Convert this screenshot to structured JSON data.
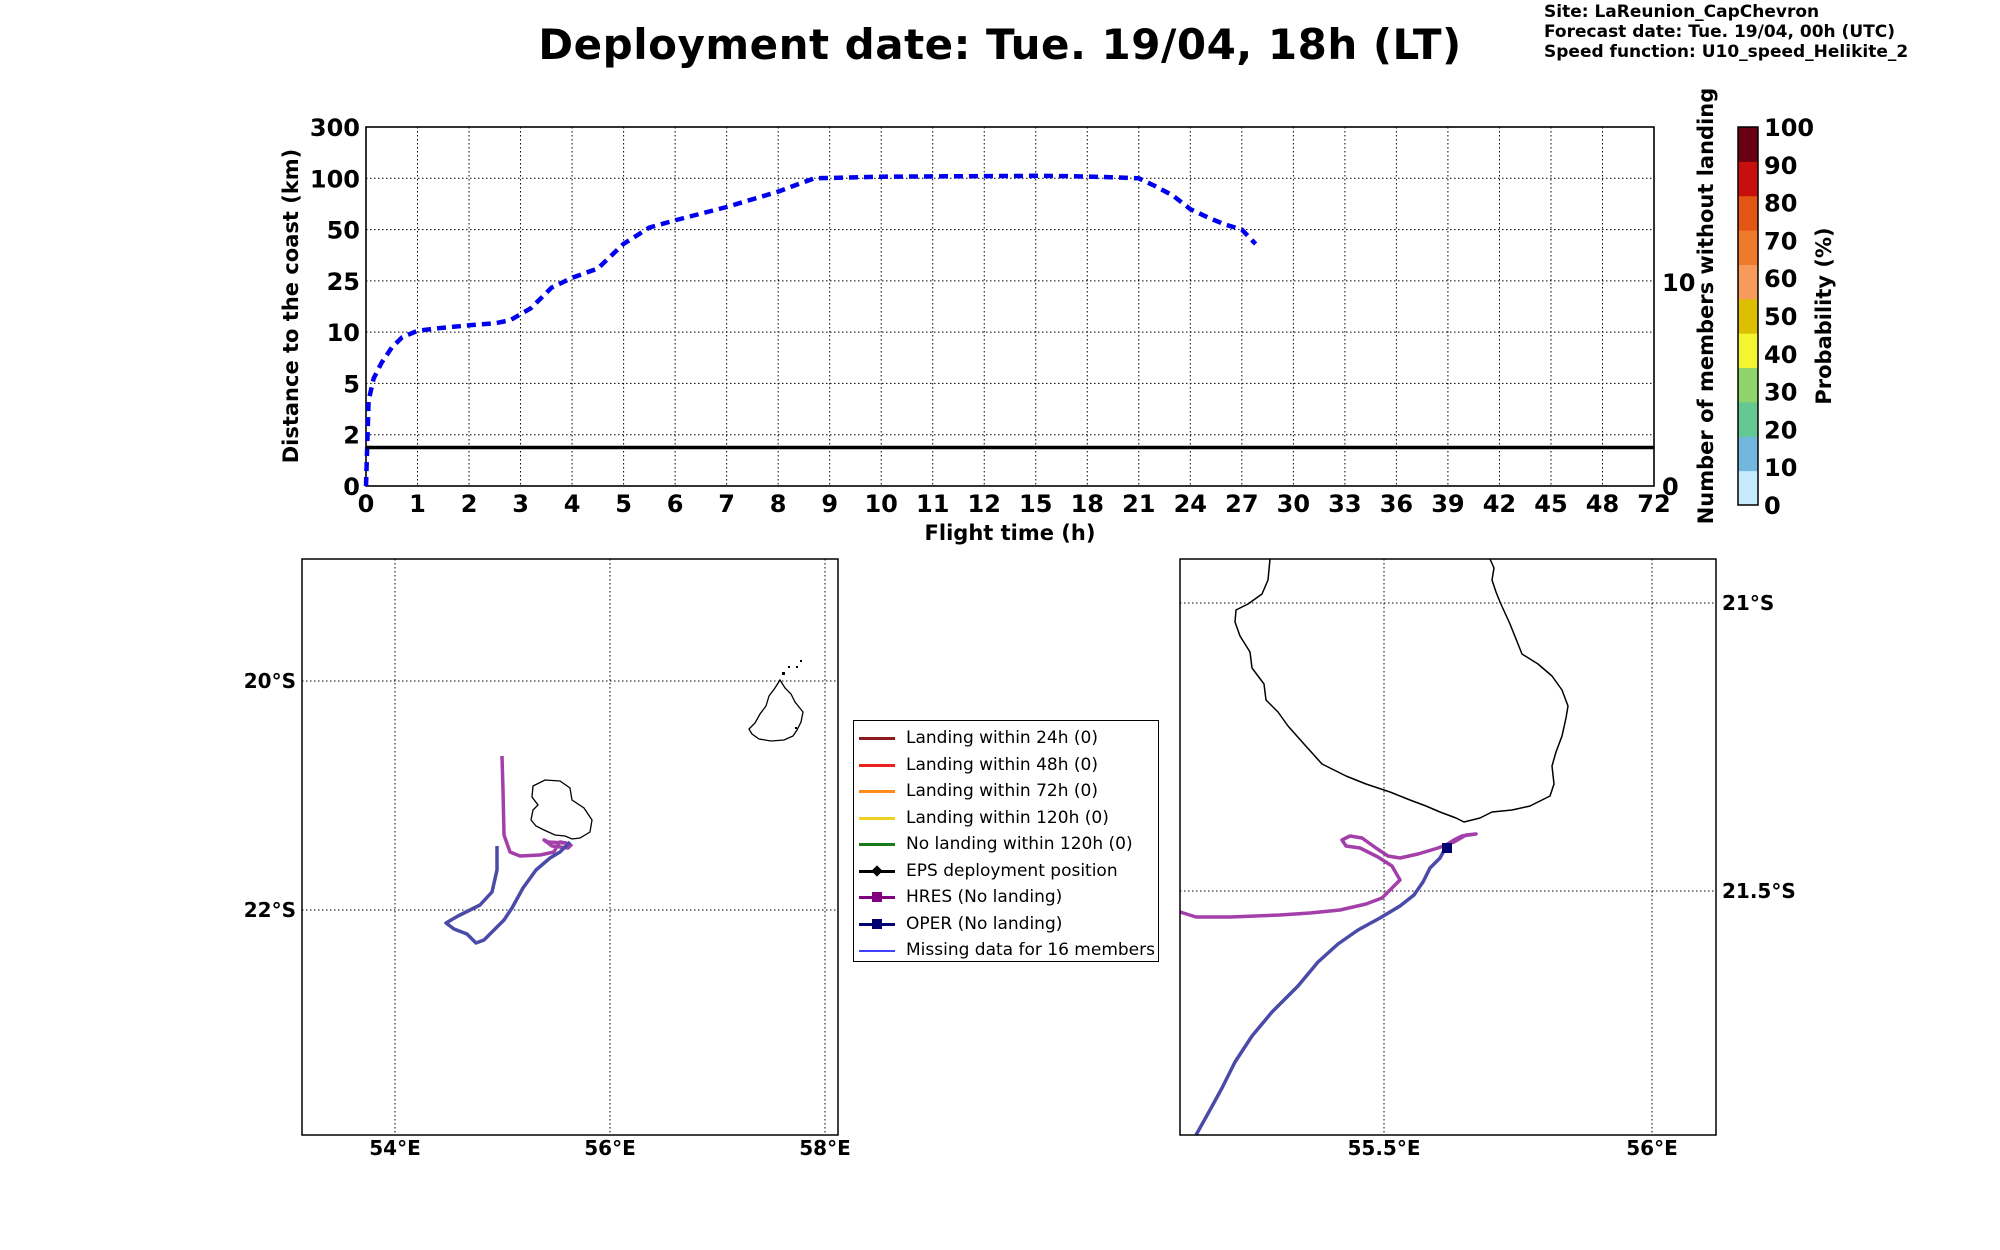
{
  "title": "Deployment date: Tue. 19/04, 18h (LT)",
  "info": {
    "site": "Site: LaReunion_CapChevron",
    "forecast": "Forecast date: Tue. 19/04, 00h (UTC)",
    "speed": "Speed function: U10_speed_Helikite_2"
  },
  "chart_data": [
    {
      "type": "line",
      "xlabel": "Flight time (h)",
      "ylabel": "Distance to the coast (km)",
      "y2label": "Number of members without landing",
      "x_ticks": [
        "0",
        "1",
        "2",
        "3",
        "4",
        "5",
        "6",
        "7",
        "8",
        "9",
        "10",
        "11",
        "12",
        "15",
        "18",
        "21",
        "24",
        "27",
        "30",
        "33",
        "36",
        "39",
        "42",
        "45",
        "48",
        "72"
      ],
      "y_ticks": [
        "0",
        "2",
        "5",
        "10",
        "25",
        "50",
        "100",
        "300"
      ],
      "y2_ticks": [
        "0",
        "10"
      ],
      "grid": true,
      "series": [
        {
          "style": "dashed",
          "color": "#0000ee",
          "x": [
            0,
            0.05,
            0.15,
            0.3,
            0.5,
            0.7,
            1,
            1.5,
            2,
            2.5,
            2.8,
            3.2,
            3.6,
            4,
            4.5,
            5,
            5.5,
            6,
            7,
            8,
            8.7,
            10,
            12,
            14,
            15,
            17,
            19,
            21,
            22,
            23,
            24,
            25,
            26,
            27,
            27.8
          ],
          "y": [
            0,
            4,
            5.5,
            7,
            8.5,
            9.5,
            10.4,
            11.3,
            12,
            12.6,
            13.5,
            17,
            23,
            26.5,
            31,
            43,
            52,
            59,
            72,
            87,
            100,
            106,
            108.5,
            109,
            109.5,
            108,
            105,
            100,
            92,
            83,
            70,
            62,
            55,
            50,
            43
          ]
        },
        {
          "style": "solid",
          "color": "#000000",
          "x": [
            0,
            72
          ],
          "y": [
            1.5,
            1.5
          ]
        }
      ]
    },
    {
      "type": "colorbar",
      "label": "Probability (%)",
      "ticks": [
        "0",
        "10",
        "20",
        "30",
        "40",
        "50",
        "60",
        "70",
        "80",
        "90",
        "100"
      ],
      "colors": [
        "#c8eafd",
        "#72b7dd",
        "#63c892",
        "#8fd46a",
        "#f4f430",
        "#dcc000",
        "#f89a5a",
        "#f07a2c",
        "#e35614",
        "#c90e0e",
        "#6a0014"
      ]
    },
    {
      "type": "map",
      "name": "overview",
      "x_ticks": [
        "54°E",
        "56°E",
        "58°E"
      ],
      "y_ticks": [
        "20°S",
        "22°S"
      ],
      "lon_range": [
        53.15,
        58.15
      ],
      "lat_range": [
        19.0,
        24.0
      ]
    },
    {
      "type": "map",
      "name": "zoom",
      "x_ticks": [
        "55.5°E",
        "56°E"
      ],
      "y_ticks": [
        "21°S",
        "21.5°S"
      ],
      "lon_range": [
        55.1,
        56.12
      ],
      "lat_range": [
        20.92,
        21.92
      ]
    }
  ],
  "legend": [
    {
      "label": "Landing within 24h (0)",
      "color": "#8b1a1a",
      "kind": "line"
    },
    {
      "label": "Landing within 48h (0)",
      "color": "#ee2020",
      "kind": "line"
    },
    {
      "label": "Landing within 72h (0)",
      "color": "#ff8c1a",
      "kind": "line"
    },
    {
      "label": "Landing within 120h (0)",
      "color": "#f0d020",
      "kind": "line"
    },
    {
      "label": "No landing within 120h (0)",
      "color": "#1a7a1a",
      "kind": "line"
    },
    {
      "label": "EPS deployment position",
      "color": "#000000",
      "kind": "diamond"
    },
    {
      "label": "HRES (No landing)",
      "color": "#800080",
      "kind": "square"
    },
    {
      "label": "OPER (No landing)",
      "color": "#000070",
      "kind": "square"
    },
    {
      "label": "Missing data for 16 members",
      "color": "#4040ff",
      "kind": "thin"
    }
  ],
  "colors": {
    "hres": "#a33fa8",
    "oper": "#4a4aa8",
    "main_series": "#0000ee"
  }
}
